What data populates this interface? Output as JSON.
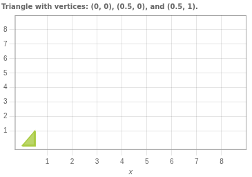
{
  "chart_data": {
    "type": "polygon",
    "title": "Triangle with vertices: (0, 0), (0.5, 0), and (0.5, 1).",
    "x": [
      0,
      0.5,
      0.5
    ],
    "values": [
      0,
      0,
      1
    ],
    "color": "#aacc44",
    "xlabel": "x",
    "xlim": [
      -0.3,
      9.0
    ],
    "ylim": [
      -0.3,
      9.0
    ],
    "xticks": [
      1,
      2,
      3,
      4,
      5,
      6,
      7,
      8
    ],
    "yticks": [
      1,
      2,
      3,
      4,
      5,
      6,
      7,
      8
    ],
    "grid": true
  }
}
